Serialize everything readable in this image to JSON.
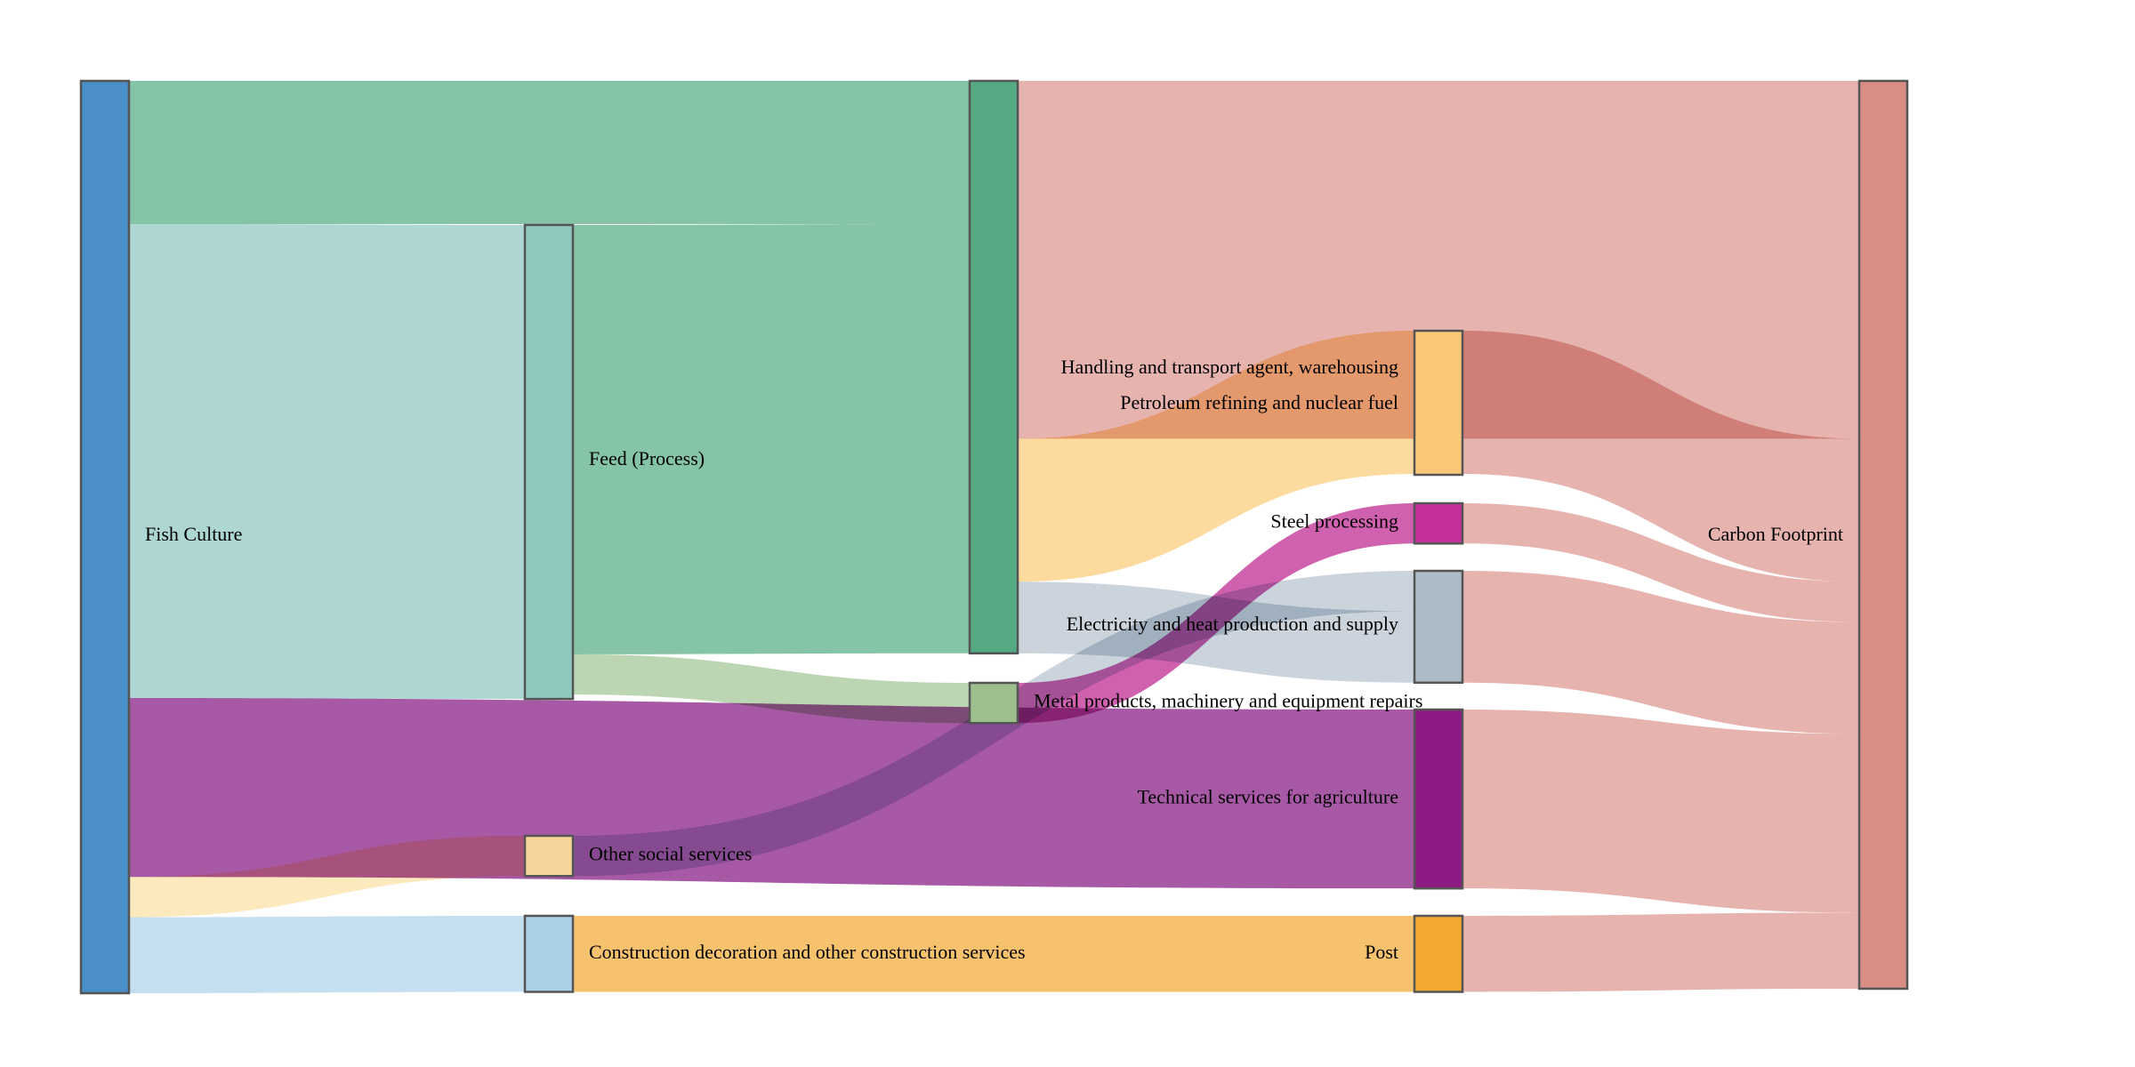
{
  "chart_data": {
    "type": "sankey",
    "title": "",
    "nodes": [
      {
        "id": "fish-culture",
        "label": "Fish Culture",
        "column": 0,
        "color": "#4a8fc7"
      },
      {
        "id": "feed-process",
        "label": "Feed (Process)",
        "column": 1,
        "color": "#8ec8bf"
      },
      {
        "id": "other-social-services",
        "label": "Other social services",
        "column": 1,
        "color": "#f7d59a"
      },
      {
        "id": "construction-decoration",
        "label": "Construction decoration and other construction services",
        "column": 1,
        "color": "#a9d0e7"
      },
      {
        "id": "feed-sink",
        "label": "",
        "column": 2,
        "color": "#55aa84"
      },
      {
        "id": "metal-products",
        "label": "Metal products, machinery and equipment repairs",
        "column": 2,
        "color": "#9dbf8e"
      },
      {
        "id": "handling-transport",
        "label": "Handling and transport agent, warehousing",
        "column": 3,
        "color": "#f9c778"
      },
      {
        "id": "petroleum-refining",
        "label": "Petroleum refining and nuclear fuel",
        "column": 3,
        "color": "#f9c778"
      },
      {
        "id": "steel-processing",
        "label": "Steel processing",
        "column": 3,
        "color": "#c3309a"
      },
      {
        "id": "electricity-heat",
        "label": "Electricity and heat production and supply",
        "column": 3,
        "color": "#adbbc6"
      },
      {
        "id": "technical-services",
        "label": "Technical services for agriculture",
        "column": 3,
        "color": "#8c1c84"
      },
      {
        "id": "post",
        "label": "Post",
        "column": 3,
        "color": "#f4aa30"
      },
      {
        "id": "carbon-footprint",
        "label": "Carbon Footprint",
        "column": 4,
        "color": "#da8d85"
      }
    ],
    "links": [
      {
        "source": "fish-culture",
        "target": "feed-sink",
        "value": 16,
        "color": "#7bbf9e"
      },
      {
        "source": "fish-culture",
        "target": "feed-process",
        "value": 53,
        "color": "#a7d4cf"
      },
      {
        "source": "fish-culture",
        "target": "technical-services",
        "value": 20,
        "color": "#a04b9e"
      },
      {
        "source": "fish-culture",
        "target": "other-social-services",
        "value": 4.5,
        "color": "#fde7b8"
      },
      {
        "source": "fish-culture",
        "target": "construction-decoration",
        "value": 8.5,
        "color": "#bfdcee"
      },
      {
        "source": "feed-process",
        "target": "feed-sink",
        "value": 48,
        "color": "#7bbf9e"
      },
      {
        "source": "feed-process",
        "target": "metal-products",
        "value": 4.5,
        "color": "#b6d3ad"
      },
      {
        "source": "other-social-services",
        "target": "electricity-heat",
        "value": 4.5,
        "color": "#c7d0d9"
      },
      {
        "source": "construction-decoration",
        "target": "post",
        "value": 8.5,
        "color": "#f6bd62"
      },
      {
        "source": "feed-sink",
        "target": "carbon-footprint",
        "value": 40,
        "color": "#e4aca8"
      },
      {
        "source": "feed-sink",
        "target": "handling-transport",
        "value": 16,
        "color": "#fdd795"
      },
      {
        "source": "feed-sink",
        "target": "electricity-heat",
        "value": 8,
        "color": "#c7d0d9"
      },
      {
        "source": "metal-products",
        "target": "steel-processing",
        "value": 4.5,
        "color": "#cc54a8"
      },
      {
        "source": "handling-transport",
        "target": "carbon-footprint",
        "value": 16,
        "color": "#e4aca8"
      },
      {
        "source": "steel-processing",
        "target": "carbon-footprint",
        "value": 4.5,
        "color": "#e4aca8"
      },
      {
        "source": "electricity-heat",
        "target": "carbon-footprint",
        "value": 12.5,
        "color": "#e4aca8"
      },
      {
        "source": "technical-services",
        "target": "carbon-footprint",
        "value": 20,
        "color": "#e4aca8"
      },
      {
        "source": "post",
        "target": "carbon-footprint",
        "value": 8.5,
        "color": "#e4aca8"
      }
    ]
  }
}
